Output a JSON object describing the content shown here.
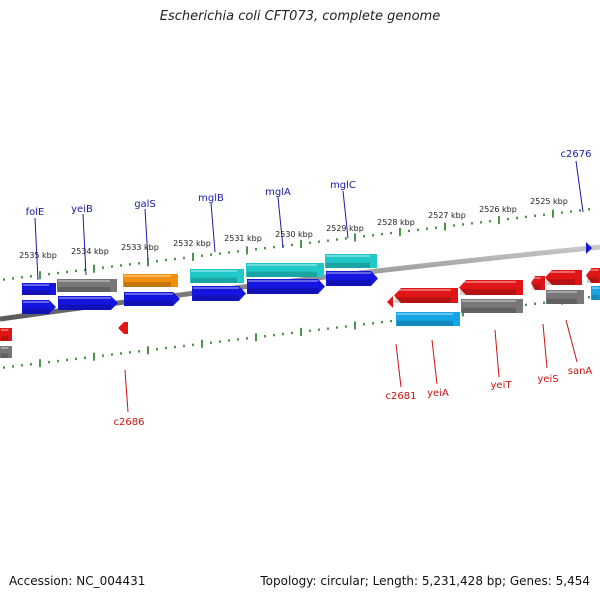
{
  "title": "Escherichia coli CFT073, complete genome",
  "footer": {
    "accession": "Accession: NC_004431",
    "summary": "Topology: circular; Length: 5,231,428 bp; Genes: 5,454"
  },
  "colors": {
    "background": "#ffffff",
    "backbone": "#8a8a8a",
    "ruler_ticks": "#1f7a1f",
    "forward_label": "#1a1aaa",
    "reverse_label": "#cc1111",
    "forward_gene": "#1515e0",
    "reverse_gene": "#e01515",
    "rna_gene": "#20c8c8",
    "orange_gene": "#f0900a",
    "gray_gene": "#777777",
    "light_blue_gene": "#16a6e6"
  },
  "ruler": {
    "unit": "kbp",
    "labels": [
      "2535 kbp",
      "2534 kbp",
      "2533 kbp",
      "2532 kbp",
      "2531 kbp",
      "2530 kbp",
      "2529 kbp",
      "2528 kbp",
      "2527 kbp",
      "2526 kbp",
      "2525 kbp"
    ]
  },
  "forward_labels": [
    "folE",
    "yeiB",
    "galS",
    "mglB",
    "mglA",
    "mglC",
    "c2676"
  ],
  "reverse_labels": [
    "c2686",
    "c2681",
    "yeiA",
    "yeiT",
    "yeiS",
    "sanA"
  ]
}
